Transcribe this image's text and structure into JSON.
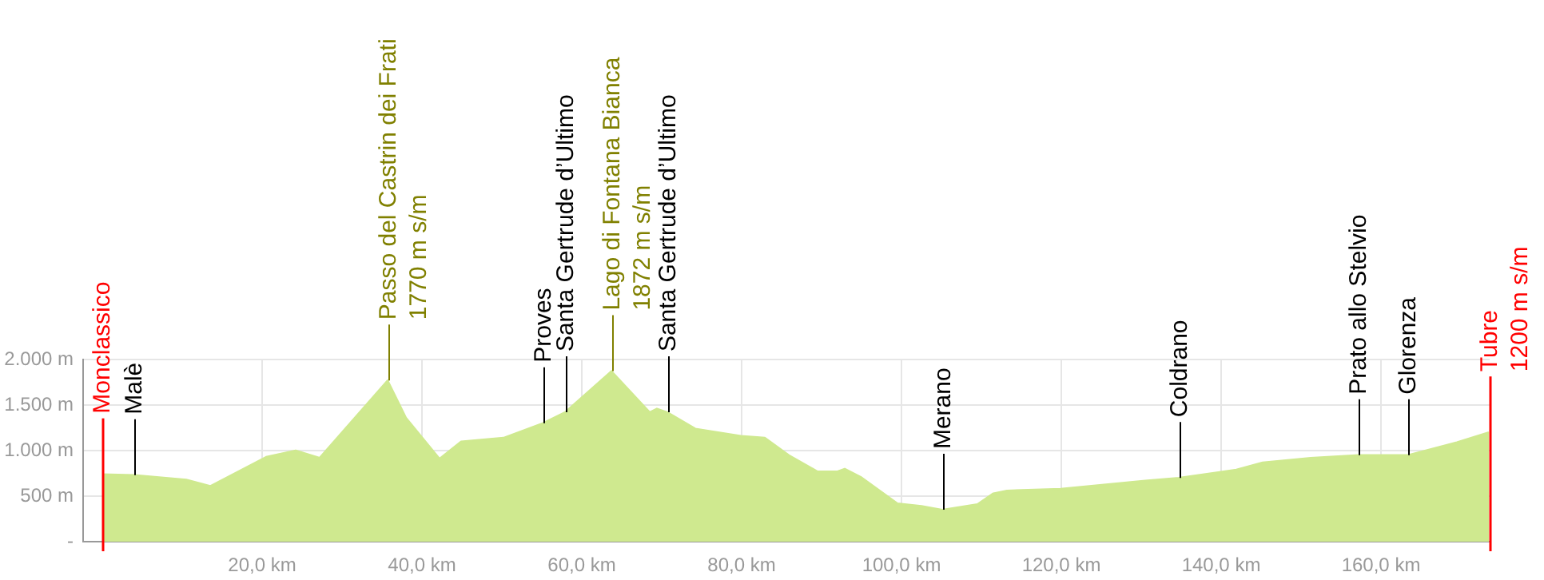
{
  "chart_data": {
    "type": "area",
    "x": [
      0,
      4,
      10.5,
      13.5,
      20.5,
      24.2,
      27.2,
      35.7,
      38,
      42.2,
      44.9,
      50.2,
      55.1,
      57.9,
      63.7,
      68.5,
      69.4,
      70.7,
      74.2,
      79.9,
      82.9,
      85.9,
      89.5,
      92,
      92.9,
      94.9,
      99.5,
      102.5,
      105.1,
      109.5,
      111.5,
      113.2,
      119.9,
      130.5,
      134.7,
      141.9,
      145.2,
      151.2,
      157.2,
      163.4,
      169.5,
      173.5
    ],
    "series": [
      {
        "color": "#cfe98f",
        "values": [
          740,
          730,
          680,
          610,
          930,
          1000,
          920,
          1770,
          1360,
          910,
          1100,
          1140,
          1300,
          1420,
          1872,
          1420,
          1460,
          1420,
          1240,
          1160,
          1140,
          950,
          770,
          770,
          800,
          710,
          420,
          390,
          350,
          410,
          530,
          560,
          580,
          670,
          700,
          790,
          870,
          920,
          950,
          950,
          1090,
          1200
        ]
      }
    ],
    "xlim": [
      -2.4,
      173.6
    ],
    "xticks": [
      {
        "value": 20,
        "label": "20,0 km"
      },
      {
        "value": 40,
        "label": "40,0 km"
      },
      {
        "value": 60,
        "label": "60,0 km"
      },
      {
        "value": 80,
        "label": "80,0 km"
      },
      {
        "value": 100,
        "label": "100,0 km"
      },
      {
        "value": 120,
        "label": "120,0 km"
      },
      {
        "value": 140,
        "label": "140,0 km"
      },
      {
        "value": 160,
        "label": "160,0 km"
      }
    ],
    "ylim": [
      0,
      2000
    ],
    "yticks": [
      {
        "value": 0,
        "label": "-"
      },
      {
        "value": 500,
        "label": "500 m"
      },
      {
        "value": 1000,
        "label": "1.000 m"
      },
      {
        "value": 1500,
        "label": "1.500 m"
      },
      {
        "value": 2000,
        "label": "2.000 m"
      }
    ],
    "grid": true,
    "annotations": [
      {
        "text": "Monclassico",
        "x": 0,
        "y": 740
      },
      {
        "text": "Malè",
        "x": 4,
        "y": 730
      },
      {
        "text": "Passo del Castrin dei Frati\n1770 m s/m",
        "x": 35.7,
        "y": 1770
      },
      {
        "text": "Proves",
        "x": 55.1,
        "y": 1300
      },
      {
        "text": "Santa Gertrude d’Ultimo",
        "x": 57.9,
        "y": 1420
      },
      {
        "text": "Lago di Fontana Bianca\n1872 m s/m",
        "x": 63.7,
        "y": 1872
      },
      {
        "text": "Santa Gertrude d’Ultimo",
        "x": 70.7,
        "y": 1420
      },
      {
        "text": "Merano",
        "x": 105.1,
        "y": 350
      },
      {
        "text": "Coldrano",
        "x": 134.7,
        "y": 700
      },
      {
        "text": "Prato allo Stelvio",
        "x": 157.2,
        "y": 950
      },
      {
        "text": "Glorenza",
        "x": 163.4,
        "y": 950
      },
      {
        "text": "Tubre\n1200 m s/m",
        "x": 173.5,
        "y": 1200
      }
    ]
  }
}
